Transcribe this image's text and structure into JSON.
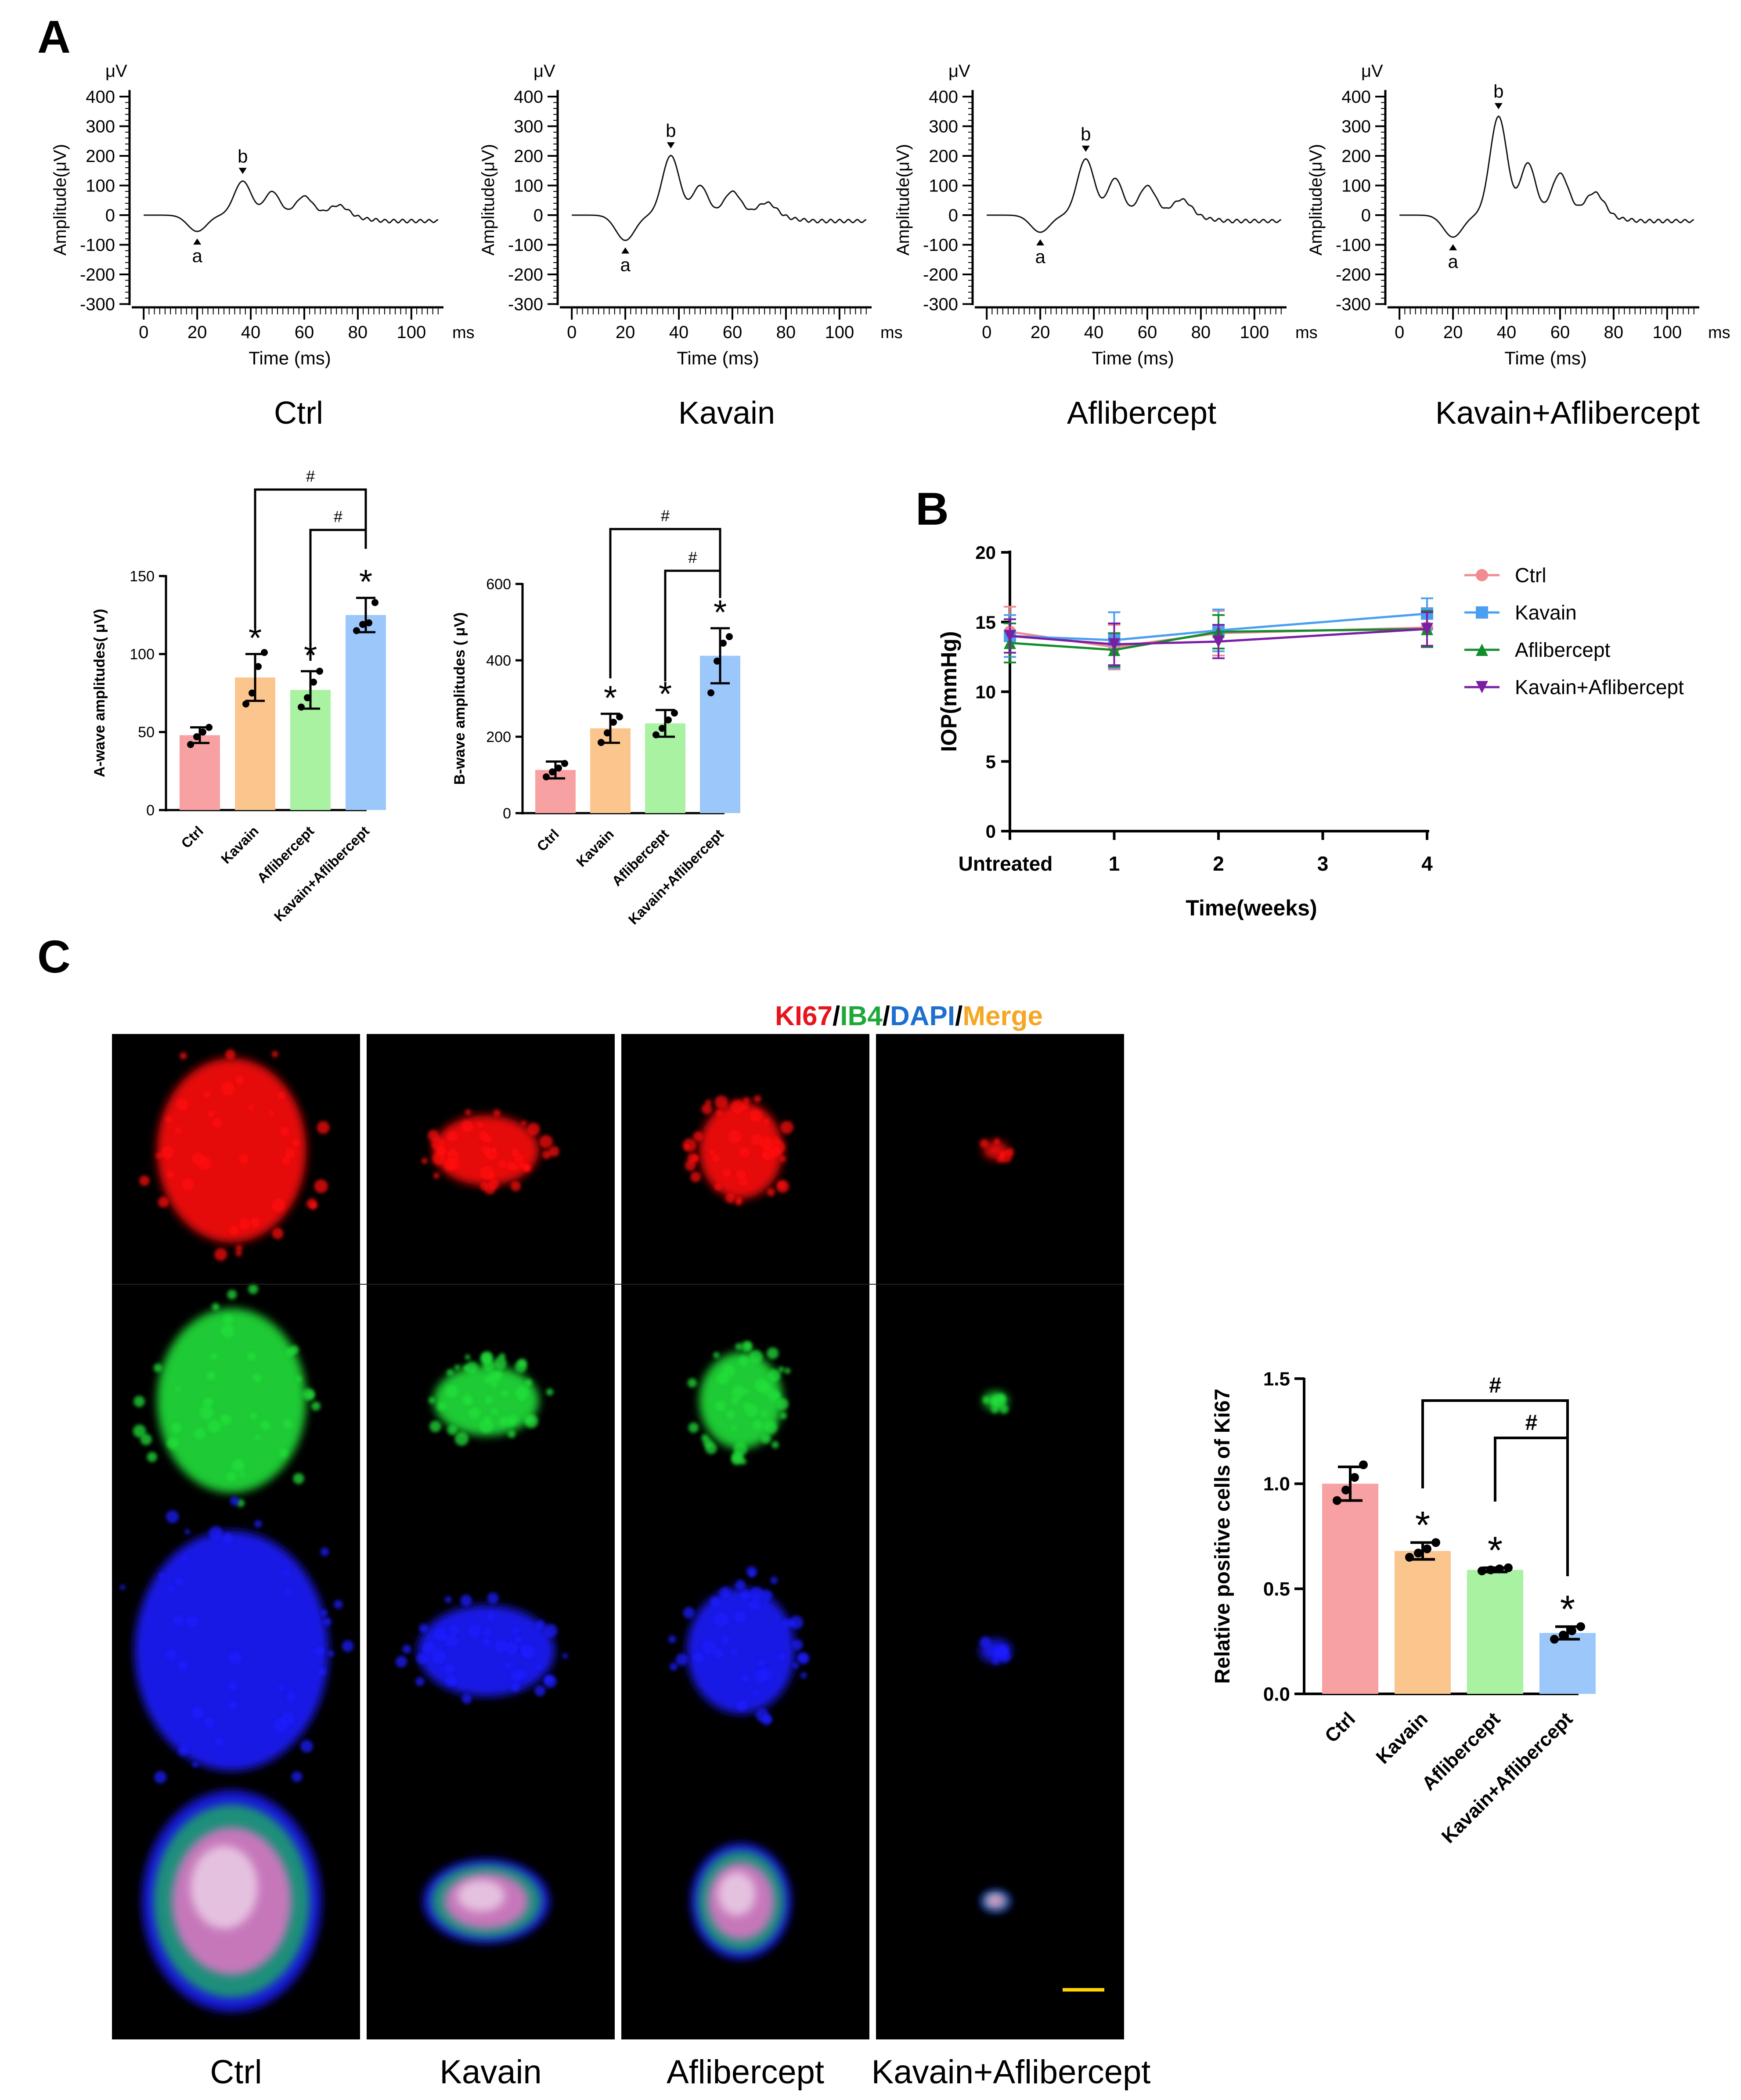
{
  "panel_labels": {
    "a": "A",
    "b": "B",
    "c": "C"
  },
  "erg": {
    "unit_y": "μV",
    "unit_x": "ms",
    "ylabel": "Amplitude(μV)",
    "xlabel": "Time (ms)",
    "yticks": [
      "400",
      "300",
      "200",
      "100",
      "0",
      "-100",
      "-200",
      "-300"
    ],
    "xticks": [
      "0",
      "20",
      "40",
      "60",
      "80",
      "100"
    ],
    "wave_a": "a",
    "wave_b": "b",
    "groups": [
      "Ctrl",
      "Kavain",
      "Aflibercept",
      "Kavain+Aflibercept"
    ]
  },
  "ki67_stain": {
    "ki67": "KI67",
    "ib4": "IB4",
    "dapi": "DAPI",
    "merge": "Merge",
    "sep": "/",
    "colors": {
      "ki67": "#e8141b",
      "ib4": "#1ea83a",
      "dapi": "#1f6fd0",
      "merge": "#f5a623"
    },
    "scale_bar_color": "#ffd400"
  },
  "group_labels": [
    "Ctrl",
    "Kavain",
    "Aflibercept",
    "Kavain+Aflibercept"
  ],
  "bar_colors": [
    "#f7a1a3",
    "#fbc58e",
    "#a8f2a1",
    "#9cc7fb"
  ],
  "iop_colors": [
    "#f08b90",
    "#4b9ff0",
    "#128c2c",
    "#7a1fa2"
  ],
  "chart_data": [
    {
      "type": "bar",
      "ylabel": "A-wave amplitudes( μV)",
      "categories": [
        "Ctrl",
        "Kavain",
        "Aflibercept",
        "Kavain+Aflibercept"
      ],
      "values": [
        48,
        85,
        77,
        125
      ],
      "errors": [
        5,
        15,
        12,
        11
      ],
      "points": [
        [
          42,
          47,
          50,
          53
        ],
        [
          68,
          75,
          92,
          101
        ],
        [
          66,
          72,
          82,
          89
        ],
        [
          115,
          119,
          120,
          133
        ]
      ],
      "ylim": [
        0,
        150
      ],
      "yticks": [
        "0",
        "50",
        "100",
        "150"
      ],
      "significance": [
        "",
        "*",
        "*",
        "*"
      ],
      "comparisons": [
        {
          "from": 1,
          "to": 3,
          "label": "#"
        },
        {
          "from": 2,
          "to": 3,
          "label": "#"
        }
      ]
    },
    {
      "type": "bar",
      "ylabel": "B-wave amplitudes ( μV)",
      "categories": [
        "Ctrl",
        "Kavain",
        "Aflibercept",
        "Kavain+Aflibercept"
      ],
      "values": [
        113,
        222,
        235,
        412
      ],
      "errors": [
        22,
        38,
        35,
        72
      ],
      "points": [
        [
          95,
          108,
          118,
          130
        ],
        [
          185,
          210,
          238,
          252
        ],
        [
          205,
          222,
          244,
          262
        ],
        [
          315,
          398,
          445,
          462
        ]
      ],
      "ylim": [
        0,
        600
      ],
      "yticks": [
        "0",
        "200",
        "400",
        "600"
      ],
      "significance": [
        "",
        "*",
        "*",
        "*"
      ],
      "comparisons": [
        {
          "from": 1,
          "to": 3,
          "label": "#"
        },
        {
          "from": 2,
          "to": 3,
          "label": "#"
        }
      ]
    },
    {
      "type": "line",
      "xlabel": "Time(weeks)",
      "ylabel": "IOP(mmHg)",
      "x": [
        "Untreated",
        "1",
        "2",
        "3",
        "4"
      ],
      "ylim": [
        0,
        20
      ],
      "yticks": [
        "0",
        "5",
        "10",
        "15",
        "20"
      ],
      "legend_position": "right",
      "series": [
        {
          "name": "Ctrl",
          "x": [
            0,
            1,
            2,
            4
          ],
          "values": [
            14.3,
            13.2,
            14.2,
            14.6
          ],
          "errors": [
            1.8,
            1.6,
            1.6,
            1.4
          ]
        },
        {
          "name": "Kavain",
          "x": [
            0,
            1,
            2,
            4
          ],
          "values": [
            14.0,
            13.7,
            14.4,
            15.6
          ],
          "errors": [
            1.5,
            2.0,
            1.5,
            1.1
          ]
        },
        {
          "name": "Aflibercept",
          "x": [
            0,
            1,
            2,
            4
          ],
          "values": [
            13.5,
            13.0,
            14.3,
            14.5
          ],
          "errors": [
            1.4,
            1.2,
            1.2,
            1.3
          ]
        },
        {
          "name": "Kavain+Aflibercept",
          "x": [
            0,
            1,
            2,
            4
          ],
          "values": [
            14.0,
            13.4,
            13.6,
            14.5
          ],
          "errors": [
            1.2,
            1.5,
            1.2,
            1.2
          ]
        }
      ]
    },
    {
      "type": "bar",
      "ylabel": "Relative positive cells of Ki67",
      "categories": [
        "Ctrl",
        "Kavain",
        "Aflibercept",
        "Kavain+Aflibercept"
      ],
      "values": [
        1.0,
        0.68,
        0.59,
        0.29
      ],
      "errors": [
        0.08,
        0.04,
        0.01,
        0.03
      ],
      "points": [
        [
          0.92,
          0.97,
          1.03,
          1.09
        ],
        [
          0.65,
          0.67,
          0.69,
          0.72
        ],
        [
          0.585,
          0.59,
          0.595,
          0.6
        ],
        [
          0.26,
          0.28,
          0.3,
          0.32
        ]
      ],
      "ylim": [
        0,
        1.5
      ],
      "yticks": [
        "0.0",
        "0.5",
        "1.0",
        "1.5"
      ],
      "significance": [
        "",
        "*",
        "*",
        "*"
      ],
      "comparisons": [
        {
          "from": 1,
          "to": 3,
          "label": "#"
        },
        {
          "from": 2,
          "to": 3,
          "label": "#"
        }
      ]
    }
  ]
}
